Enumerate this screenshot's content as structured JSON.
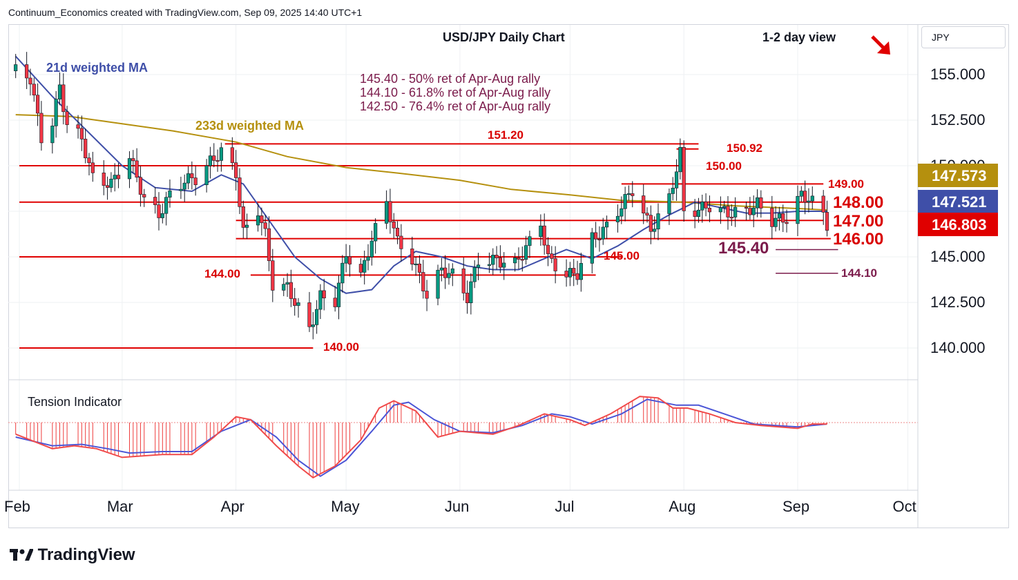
{
  "header": "Continuum_Economics created with TradingView.com, Sep 09, 2025 14:40 UTC+1",
  "scale_label": "JPY",
  "footer_logo": "TradingView",
  "colors": {
    "bull": "#089981",
    "bear": "#f23645",
    "level": "#e00000",
    "ma21": "#3f4fa8",
    "ma233": "#b5900e",
    "maroon": "#7b1b4b",
    "badge_gold": "#b5900e",
    "badge_blue": "#3f4fa8",
    "badge_red": "#e00000"
  },
  "chart_data": {
    "type": "candlestick",
    "title": "USD/JPY Daily Chart",
    "subtitle": "1-2 day view",
    "view_arrow": "down-right-arrow",
    "y_ticks": [
      "155.000",
      "152.500",
      "150.000",
      "147.500",
      "145.000",
      "142.500",
      "140.000"
    ],
    "y_tick_values": [
      155,
      152.5,
      150,
      147.5,
      145,
      142.5,
      140
    ],
    "x_ticks": [
      "Feb",
      "Mar",
      "Apr",
      "May",
      "Jun",
      "Jul",
      "Aug",
      "Sep",
      "Oct"
    ],
    "x_tick_dates": [
      "2025-02-01",
      "2025-03-01",
      "2025-04-01",
      "2025-05-01",
      "2025-06-01",
      "2025-07-01",
      "2025-08-01",
      "2025-09-01",
      "2025-10-01"
    ],
    "price_badges": [
      {
        "label": "147.573",
        "value": 147.573,
        "series": "233d weighted MA"
      },
      {
        "label": "147.521",
        "value": 147.521,
        "series": "21d weighted MA"
      },
      {
        "label": "146.803",
        "value": 146.803,
        "series": "USD/JPY"
      }
    ],
    "ma_labels": {
      "ma21": "21d weighted MA",
      "ma233": "233d weighted MA"
    },
    "retracements": [
      "145.40 - 50% ret of Apr-Aug rally",
      "144.10 - 61.8% ret of Apr-Aug rally",
      "142.50 - 76.4% ret of Apr-Aug rally"
    ],
    "levels": [
      {
        "label": "151.20",
        "value": 151.2,
        "from": "2025-03-29",
        "to": "2025-08-05"
      },
      {
        "label": "150.92",
        "value": 150.92,
        "from": "2025-07-30",
        "to": "2025-08-05"
      },
      {
        "label": "150.00",
        "value": 150.0,
        "from": "2025-02-01",
        "to": "2025-08-01"
      },
      {
        "label": "149.00",
        "value": 149.0,
        "from": "2025-07-15",
        "to": "2025-09-08"
      },
      {
        "label": "148.00",
        "value": 148.0,
        "from": "2025-02-01",
        "to": "2025-09-08"
      },
      {
        "label": "147.00",
        "value": 147.0,
        "from": "2025-04-01",
        "to": "2025-09-08"
      },
      {
        "label": "146.00",
        "value": 146.0,
        "from": "2025-04-01",
        "to": "2025-09-10"
      },
      {
        "label": "145.00",
        "value": 145.0,
        "from": "2025-02-01",
        "to": "2025-07-15"
      },
      {
        "label": "144.00",
        "value": 144.0,
        "from": "2025-04-05",
        "to": "2025-07-08"
      },
      {
        "label": "140.00",
        "value": 140.0,
        "from": "2025-02-01",
        "to": "2025-04-22"
      }
    ],
    "projections": [
      {
        "label": "145.40",
        "value": 145.4,
        "from": "2025-08-26",
        "to": "2025-09-12"
      },
      {
        "label": "144.10",
        "value": 144.1,
        "from": "2025-08-26",
        "to": "2025-09-12"
      }
    ],
    "ohlc_anchors": [
      [
        "2025-01-31",
        155.2
      ],
      [
        "2025-02-04",
        154.8
      ],
      [
        "2025-02-07",
        151.5
      ],
      [
        "2025-02-10",
        152.4
      ],
      [
        "2025-02-12",
        154.3
      ],
      [
        "2025-02-14",
        152.3
      ],
      [
        "2025-02-18",
        151.5
      ],
      [
        "2025-02-21",
        149.3
      ],
      [
        "2025-02-26",
        149.0
      ],
      [
        "2025-03-03",
        150.5
      ],
      [
        "2025-03-07",
        148.2
      ],
      [
        "2025-03-11",
        147.3
      ],
      [
        "2025-03-14",
        148.4
      ],
      [
        "2025-03-18",
        149.2
      ],
      [
        "2025-03-21",
        149.3
      ],
      [
        "2025-03-25",
        150.2
      ],
      [
        "2025-03-28",
        150.8
      ],
      [
        "2025-04-01",
        149.6
      ],
      [
        "2025-04-03",
        146.3
      ],
      [
        "2025-04-07",
        147.6
      ],
      [
        "2025-04-09",
        146.2
      ],
      [
        "2025-04-11",
        143.5
      ],
      [
        "2025-04-15",
        143.3
      ],
      [
        "2025-04-18",
        142.2
      ],
      [
        "2025-04-21",
        141.0
      ],
      [
        "2025-04-24",
        142.8
      ],
      [
        "2025-04-28",
        142.6
      ],
      [
        "2025-05-01",
        145.2
      ],
      [
        "2025-05-05",
        143.9
      ],
      [
        "2025-05-08",
        146.0
      ],
      [
        "2025-05-12",
        148.0
      ],
      [
        "2025-05-15",
        145.8
      ],
      [
        "2025-05-19",
        144.9
      ],
      [
        "2025-05-23",
        142.9
      ],
      [
        "2025-05-27",
        144.3
      ],
      [
        "2025-05-30",
        144.0
      ],
      [
        "2025-06-03",
        142.8
      ],
      [
        "2025-06-06",
        144.8
      ],
      [
        "2025-06-11",
        144.8
      ],
      [
        "2025-06-16",
        144.6
      ],
      [
        "2025-06-20",
        145.8
      ],
      [
        "2025-06-23",
        146.9
      ],
      [
        "2025-06-25",
        144.9
      ],
      [
        "2025-06-30",
        144.0
      ],
      [
        "2025-07-03",
        144.1
      ],
      [
        "2025-07-07",
        146.0
      ],
      [
        "2025-07-10",
        146.4
      ],
      [
        "2025-07-15",
        147.8
      ],
      [
        "2025-07-18",
        148.7
      ],
      [
        "2025-07-23",
        146.5
      ],
      [
        "2025-07-28",
        148.2
      ],
      [
        "2025-07-31",
        150.7
      ],
      [
        "2025-08-01",
        147.4
      ],
      [
        "2025-08-05",
        147.6
      ],
      [
        "2025-08-08",
        147.8
      ],
      [
        "2025-08-13",
        147.4
      ],
      [
        "2025-08-18",
        147.5
      ],
      [
        "2025-08-21",
        147.9
      ],
      [
        "2025-08-25",
        147.0
      ],
      [
        "2025-08-29",
        147.1
      ],
      [
        "2025-09-02",
        148.4
      ],
      [
        "2025-09-04",
        148.2
      ],
      [
        "2025-09-08",
        147.4
      ],
      [
        "2025-09-09",
        146.8
      ]
    ],
    "ma21": [
      [
        "2025-01-31",
        156.0
      ],
      [
        "2025-02-10",
        153.8
      ],
      [
        "2025-02-20",
        151.8
      ],
      [
        "2025-03-01",
        150.0
      ],
      [
        "2025-03-10",
        148.8
      ],
      [
        "2025-03-20",
        148.6
      ],
      [
        "2025-03-28",
        149.5
      ],
      [
        "2025-04-03",
        149.0
      ],
      [
        "2025-04-10",
        147.0
      ],
      [
        "2025-04-17",
        145.0
      ],
      [
        "2025-04-24",
        143.8
      ],
      [
        "2025-05-01",
        143.0
      ],
      [
        "2025-05-08",
        143.2
      ],
      [
        "2025-05-14",
        144.5
      ],
      [
        "2025-05-20",
        145.3
      ],
      [
        "2025-05-27",
        145.0
      ],
      [
        "2025-06-03",
        144.5
      ],
      [
        "2025-06-10",
        144.3
      ],
      [
        "2025-06-17",
        144.3
      ],
      [
        "2025-06-24",
        144.9
      ],
      [
        "2025-06-30",
        145.4
      ],
      [
        "2025-07-07",
        144.9
      ],
      [
        "2025-07-14",
        145.6
      ],
      [
        "2025-07-21",
        146.5
      ],
      [
        "2025-07-28",
        147.3
      ],
      [
        "2025-08-04",
        148.0
      ],
      [
        "2025-08-11",
        147.7
      ],
      [
        "2025-08-18",
        147.4
      ],
      [
        "2025-08-25",
        147.4
      ],
      [
        "2025-09-01",
        147.5
      ],
      [
        "2025-09-09",
        147.5
      ]
    ],
    "ma233": [
      [
        "2025-01-31",
        152.8
      ],
      [
        "2025-02-15",
        152.7
      ],
      [
        "2025-03-01",
        152.3
      ],
      [
        "2025-03-15",
        151.9
      ],
      [
        "2025-04-01",
        151.3
      ],
      [
        "2025-04-15",
        150.5
      ],
      [
        "2025-05-01",
        149.9
      ],
      [
        "2025-05-15",
        149.6
      ],
      [
        "2025-06-01",
        149.2
      ],
      [
        "2025-06-15",
        148.7
      ],
      [
        "2025-07-01",
        148.4
      ],
      [
        "2025-07-15",
        148.1
      ],
      [
        "2025-08-01",
        148.0
      ],
      [
        "2025-08-15",
        147.8
      ],
      [
        "2025-09-01",
        147.65
      ],
      [
        "2025-09-09",
        147.57
      ]
    ],
    "tension_indicator": {
      "title": "Tension Indicator",
      "fast": [
        [
          "2025-01-31",
          -0.4
        ],
        [
          "2025-02-10",
          -0.9
        ],
        [
          "2025-02-16",
          -0.8
        ],
        [
          "2025-02-22",
          -0.9
        ],
        [
          "2025-03-01",
          -1.2
        ],
        [
          "2025-03-12",
          -1.1
        ],
        [
          "2025-03-20",
          -1.1
        ],
        [
          "2025-03-26",
          -0.5
        ],
        [
          "2025-04-01",
          0.2
        ],
        [
          "2025-04-05",
          0.1
        ],
        [
          "2025-04-12",
          -0.8
        ],
        [
          "2025-04-18",
          -1.5
        ],
        [
          "2025-04-22",
          -1.9
        ],
        [
          "2025-04-28",
          -1.5
        ],
        [
          "2025-05-05",
          -0.6
        ],
        [
          "2025-05-10",
          0.5
        ],
        [
          "2025-05-14",
          0.75
        ],
        [
          "2025-05-20",
          0.4
        ],
        [
          "2025-05-26",
          -0.5
        ],
        [
          "2025-06-01",
          -0.3
        ],
        [
          "2025-06-10",
          -0.4
        ],
        [
          "2025-06-17",
          -0.1
        ],
        [
          "2025-06-24",
          0.3
        ],
        [
          "2025-07-01",
          0.1
        ],
        [
          "2025-07-05",
          -0.1
        ],
        [
          "2025-07-12",
          0.3
        ],
        [
          "2025-07-20",
          0.9
        ],
        [
          "2025-07-25",
          0.85
        ],
        [
          "2025-07-29",
          0.5
        ],
        [
          "2025-08-02",
          0.5
        ],
        [
          "2025-08-08",
          0.3
        ],
        [
          "2025-08-15",
          0.0
        ],
        [
          "2025-08-22",
          -0.1
        ],
        [
          "2025-09-01",
          -0.2
        ],
        [
          "2025-09-05",
          -0.05
        ],
        [
          "2025-09-09",
          -0.05
        ]
      ],
      "slow": [
        [
          "2025-01-31",
          -0.5
        ],
        [
          "2025-02-10",
          -0.8
        ],
        [
          "2025-02-18",
          -0.75
        ],
        [
          "2025-02-25",
          -0.9
        ],
        [
          "2025-03-03",
          -1.05
        ],
        [
          "2025-03-12",
          -1.0
        ],
        [
          "2025-03-20",
          -1.0
        ],
        [
          "2025-03-28",
          -0.3
        ],
        [
          "2025-04-05",
          0.1
        ],
        [
          "2025-04-12",
          -0.5
        ],
        [
          "2025-04-18",
          -1.3
        ],
        [
          "2025-04-24",
          -1.85
        ],
        [
          "2025-05-01",
          -1.3
        ],
        [
          "2025-05-08",
          -0.3
        ],
        [
          "2025-05-14",
          0.6
        ],
        [
          "2025-05-18",
          0.7
        ],
        [
          "2025-05-25",
          0.1
        ],
        [
          "2025-06-01",
          -0.3
        ],
        [
          "2025-06-10",
          -0.35
        ],
        [
          "2025-06-18",
          -0.1
        ],
        [
          "2025-06-26",
          0.3
        ],
        [
          "2025-07-01",
          0.2
        ],
        [
          "2025-07-07",
          -0.05
        ],
        [
          "2025-07-15",
          0.3
        ],
        [
          "2025-07-22",
          0.8
        ],
        [
          "2025-07-30",
          0.6
        ],
        [
          "2025-08-05",
          0.6
        ],
        [
          "2025-08-12",
          0.3
        ],
        [
          "2025-08-20",
          -0.05
        ],
        [
          "2025-09-01",
          -0.15
        ],
        [
          "2025-09-09",
          -0.05
        ]
      ]
    }
  }
}
